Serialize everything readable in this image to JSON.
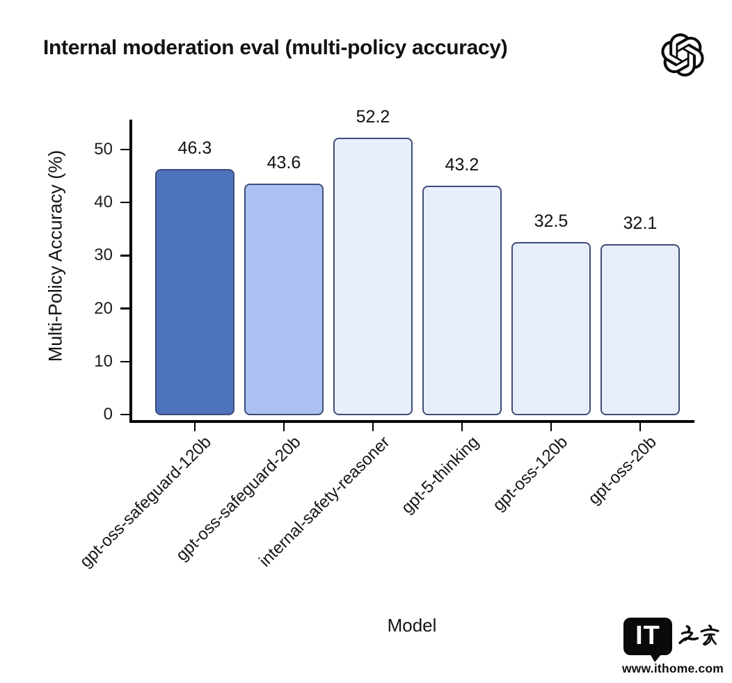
{
  "title": "Internal moderation eval (multi-policy accuracy)",
  "header": {
    "logo": "openai-logo"
  },
  "chart_data": {
    "type": "bar",
    "title": "Internal moderation eval (multi-policy accuracy)",
    "categories": [
      "gpt-oss-safeguard-120b",
      "gpt-oss-safeguard-20b",
      "internal-safety-reasoner",
      "gpt-5-thinking",
      "gpt-oss-120b",
      "gpt-oss-20b"
    ],
    "values": [
      46.3,
      43.6,
      52.2,
      43.2,
      32.5,
      32.1
    ],
    "value_labels": [
      "46.3",
      "43.6",
      "52.2",
      "43.2",
      "32.5",
      "32.1"
    ],
    "xlabel": "Model",
    "ylabel": "Multi-Policy Accuracy (%)",
    "yticks": [
      0,
      10,
      20,
      30,
      40,
      50
    ],
    "ylim": [
      0,
      56
    ],
    "grid": false,
    "legend": null,
    "bar_colors": [
      "#4e73bd",
      "#aac1f2",
      "#e8eefb",
      "#e8eefb",
      "#e8eefb",
      "#e8eefb"
    ],
    "bar_edge_color": "#3e4c78",
    "axis_color": "#000000"
  },
  "watermark": {
    "bubble_text": "IT",
    "cjk_text": "之家",
    "url": "www.ithome.com"
  }
}
